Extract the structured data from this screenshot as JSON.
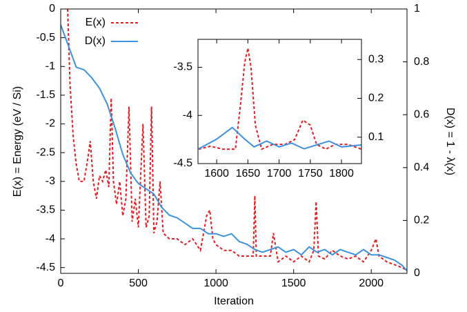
{
  "chart_data": [
    {
      "type": "line",
      "xlabel": "Iteration",
      "ylabel": "E(x) = Energy (eV / Si)",
      "y2label": "D(x) = 1 - λ(x)",
      "xlim": [
        0,
        2230
      ],
      "xticks": [
        0,
        500,
        1000,
        1500,
        2000
      ],
      "ylim": [
        -4.6,
        0
      ],
      "yticks": [
        0,
        -0.5,
        -1,
        -1.5,
        -2,
        -2.5,
        -3,
        -3.5,
        -4,
        -4.5
      ],
      "y2lim": [
        0,
        1
      ],
      "y2ticks": [
        0,
        0.2,
        0.4,
        0.6,
        0.8,
        1
      ],
      "legend": "top-left",
      "series": [
        {
          "name": "E(x)",
          "color": "#e8191e",
          "style": "dashed",
          "axis": "y",
          "x": [
            45,
            60,
            80,
            100,
            120,
            150,
            175,
            190,
            210,
            230,
            250,
            270,
            290,
            310,
            325,
            340,
            360,
            380,
            400,
            420,
            440,
            460,
            480,
            500,
            530,
            550,
            570,
            585,
            600,
            620,
            640,
            660,
            700,
            750,
            800,
            850,
            900,
            940,
            960,
            980,
            1000,
            1050,
            1100,
            1150,
            1200,
            1240,
            1250,
            1260,
            1300,
            1350,
            1370,
            1400,
            1450,
            1500,
            1550,
            1600,
            1630,
            1645,
            1660,
            1700,
            1750,
            1800,
            1850,
            1900,
            1950,
            2000,
            2030,
            2050,
            2100,
            2150,
            2200,
            2230
          ],
          "values": [
            0,
            -1.3,
            -2.2,
            -2.7,
            -3.0,
            -3.0,
            -2.6,
            -2.3,
            -3.0,
            -3.3,
            -2.9,
            -3.0,
            -2.8,
            -3.1,
            -1.55,
            -3.0,
            -3.4,
            -3.0,
            -3.6,
            -3.3,
            -1.7,
            -3.7,
            -3.3,
            -3.8,
            -2.0,
            -3.8,
            -3.6,
            -1.7,
            -3.9,
            -3.7,
            -3.0,
            -3.9,
            -4.0,
            -4.0,
            -4.1,
            -4.0,
            -4.2,
            -3.6,
            -3.5,
            -4.0,
            -4.1,
            -4.2,
            -4.2,
            -4.3,
            -4.3,
            -4.3,
            -3.25,
            -4.3,
            -4.3,
            -4.3,
            -3.9,
            -4.4,
            -4.3,
            -4.4,
            -4.3,
            -4.4,
            -4.2,
            -3.35,
            -4.3,
            -4.35,
            -4.2,
            -4.3,
            -4.35,
            -4.3,
            -4.4,
            -4.2,
            -4.0,
            -4.3,
            -4.4,
            -4.45,
            -4.5,
            -4.55
          ]
        },
        {
          "name": "D(x)",
          "color": "#3b91e0",
          "style": "solid",
          "axis": "y2",
          "x": [
            0,
            50,
            100,
            150,
            200,
            250,
            300,
            350,
            400,
            450,
            500,
            550,
            600,
            650,
            700,
            750,
            800,
            850,
            900,
            950,
            1000,
            1050,
            1100,
            1150,
            1200,
            1250,
            1300,
            1350,
            1400,
            1450,
            1500,
            1550,
            1600,
            1650,
            1700,
            1750,
            1800,
            1850,
            1900,
            1950,
            2000,
            2050,
            2100,
            2150,
            2200,
            2230
          ],
          "values": [
            0.94,
            0.86,
            0.78,
            0.77,
            0.74,
            0.7,
            0.64,
            0.55,
            0.45,
            0.38,
            0.34,
            0.32,
            0.3,
            0.25,
            0.22,
            0.21,
            0.19,
            0.17,
            0.17,
            0.15,
            0.15,
            0.14,
            0.15,
            0.12,
            0.11,
            0.09,
            0.08,
            0.09,
            0.1,
            0.08,
            0.09,
            0.07,
            0.1,
            0.08,
            0.09,
            0.07,
            0.09,
            0.08,
            0.07,
            0.09,
            0.07,
            0.07,
            0.06,
            0.05,
            0.03,
            0.01
          ]
        }
      ]
    },
    {
      "type": "line",
      "xlim": [
        1570,
        1832
      ],
      "xticks": [
        1600,
        1650,
        1700,
        1750,
        1800
      ],
      "ylim": [
        -4.5,
        -3.21
      ],
      "yticks": [
        -3.5,
        -4,
        -4.5
      ],
      "y2lim": [
        0.032,
        0.352
      ],
      "y2ticks": [
        0.1,
        0.2,
        0.3
      ],
      "series": [
        {
          "color": "#e8191e",
          "style": "dashed",
          "axis": "y",
          "x": [
            1571,
            1590,
            1610,
            1630,
            1638,
            1645,
            1650,
            1655,
            1662,
            1672,
            1690,
            1710,
            1725,
            1738,
            1750,
            1760,
            1775,
            1790,
            1810,
            1832
          ],
          "values": [
            -4.35,
            -4.32,
            -4.35,
            -4.35,
            -3.9,
            -3.45,
            -3.3,
            -3.5,
            -4.1,
            -4.35,
            -4.3,
            -4.3,
            -4.25,
            -4.05,
            -4.1,
            -4.3,
            -4.35,
            -4.3,
            -4.3,
            -4.35
          ]
        },
        {
          "color": "#3b91e0",
          "style": "solid",
          "axis": "y2",
          "x": [
            1571,
            1600,
            1625,
            1645,
            1660,
            1680,
            1700,
            1720,
            1740,
            1760,
            1780,
            1800,
            1832
          ],
          "values": [
            0.07,
            0.095,
            0.125,
            0.095,
            0.075,
            0.09,
            0.075,
            0.085,
            0.07,
            0.08,
            0.09,
            0.075,
            0.08
          ]
        }
      ]
    }
  ]
}
